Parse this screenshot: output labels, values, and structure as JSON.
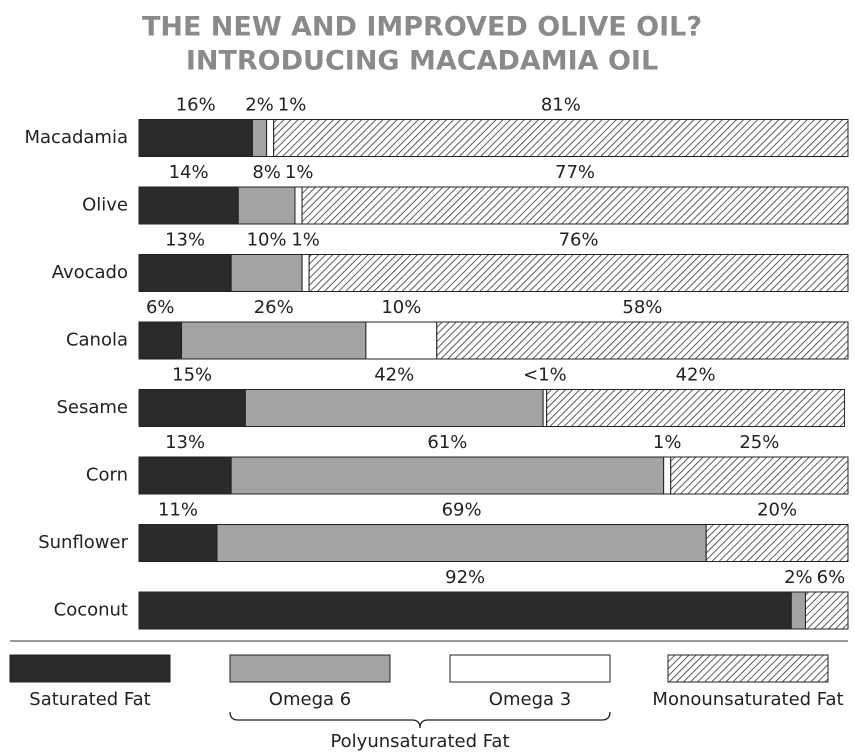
{
  "chart_data": {
    "type": "stacked-bar",
    "orientation": "horizontal",
    "title": [
      "THE NEW AND IMPROVED OLIVE OIL?",
      "INTRODUCING MACADAMIA OIL"
    ],
    "categories": [
      "Macadamia",
      "Olive",
      "Avocado",
      "Canola",
      "Sesame",
      "Corn",
      "Sunflower",
      "Coconut"
    ],
    "xlim": [
      0,
      100
    ],
    "series": [
      {
        "name": "Saturated Fat",
        "color": "#2a2a2a",
        "values": [
          16,
          14,
          13,
          6,
          15,
          13,
          11,
          92
        ],
        "value_labels": [
          "16%",
          "14%",
          "13%",
          "6%",
          "15%",
          "13%",
          "11%",
          "92%"
        ]
      },
      {
        "name": "Omega 6",
        "color": "#a3a3a3",
        "values": [
          2,
          8,
          10,
          26,
          42,
          61,
          69,
          2
        ],
        "value_labels": [
          "2%",
          "8%",
          "10%",
          "26%",
          "42%",
          "61%",
          "69%",
          "2%"
        ]
      },
      {
        "name": "Omega 3",
        "color": "#ffffff",
        "values": [
          1,
          1,
          1,
          10,
          0.5,
          1,
          null,
          null
        ],
        "value_labels": [
          "1%",
          "1%",
          "1%",
          "10%",
          "<1%",
          "1%",
          null,
          null
        ]
      },
      {
        "name": "Monounsaturated Fat",
        "color": "#333333",
        "pattern": "hatch",
        "values": [
          81,
          77,
          76,
          58,
          42,
          25,
          20,
          6
        ],
        "value_labels": [
          "81%",
          "77%",
          "76%",
          "58%",
          "42%",
          "25%",
          "20%",
          "6%"
        ]
      }
    ],
    "legend_group_label": "Polyunsaturated Fat",
    "legend": "bottom"
  }
}
